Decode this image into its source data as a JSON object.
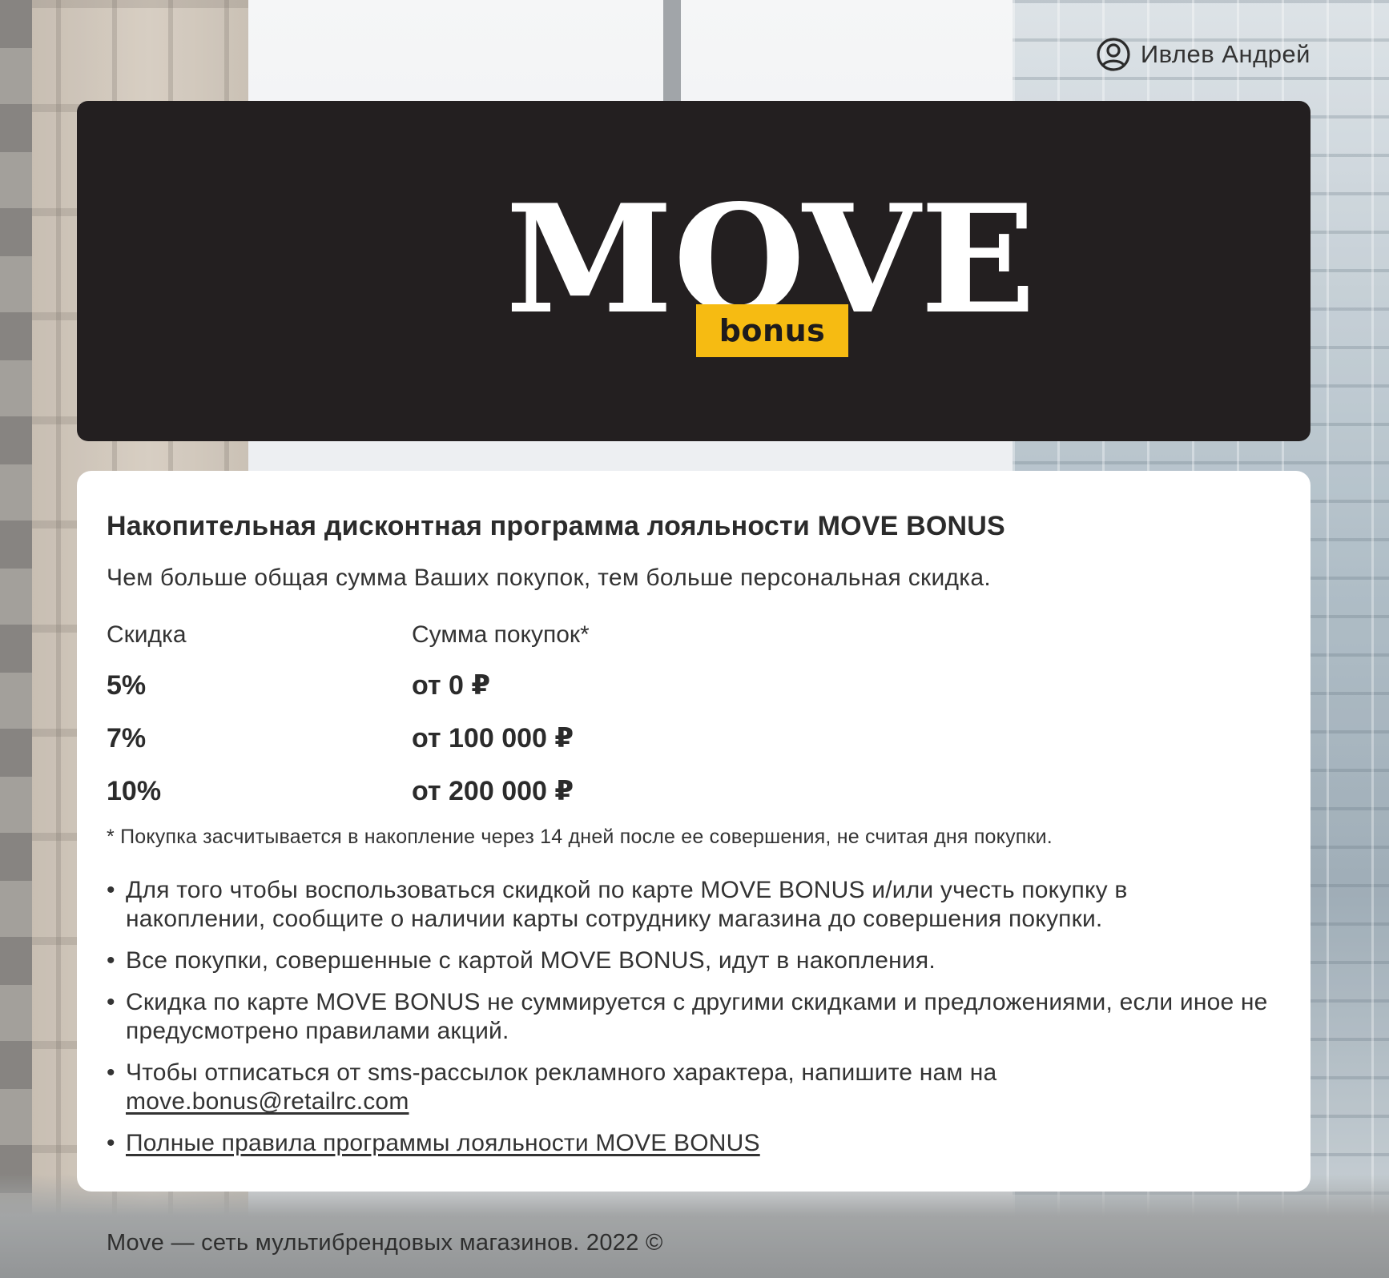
{
  "user": {
    "name": "Ивлев Андрей",
    "icon": "user-circle-icon"
  },
  "logo": {
    "word": "MOVE",
    "badge": "bonus",
    "badge_color": "#f6bb12",
    "background": "#231f20"
  },
  "program": {
    "title": "Накопительная дисконтная программа лояльности MOVE BONUS",
    "lead": "Чем больше общая сумма Ваших покупок, тем больше персональная скидка.",
    "columns": [
      "Скидка",
      "Сумма покупок*"
    ],
    "tiers": [
      {
        "discount": "5%",
        "amount": "от 0 ₽"
      },
      {
        "discount": "7%",
        "amount": "от 100 000 ₽"
      },
      {
        "discount": "10%",
        "amount": "от 200 000 ₽"
      }
    ],
    "footnote": "* Покупка засчитывается в накопление через 14 дней после ее совершения, не считая дня покупки.",
    "rules": [
      "Для того чтобы воспользоваться скидкой по карте MOVE BONUS и/или учесть покупку в накоплении, сообщите о наличии карты сотруднику магазина до совершения покупки.",
      "Все покупки, совершенные с картой MOVE BONUS, идут в накопления.",
      "Скидка по карте MOVE BONUS не суммируется с другими скидками и предложениями, если иное не предусмотрено правилами акций.",
      "Чтобы отписаться от sms-рассылок рекламного характера, напишите нам на"
    ],
    "bullet": "•",
    "email": "move.bonus@retailrc.com",
    "rules_link": "Полные правила программы лояльности MOVE BONUS"
  },
  "footer": {
    "text": "Move — сеть мультибрендовых магазинов. 2022 ©"
  }
}
